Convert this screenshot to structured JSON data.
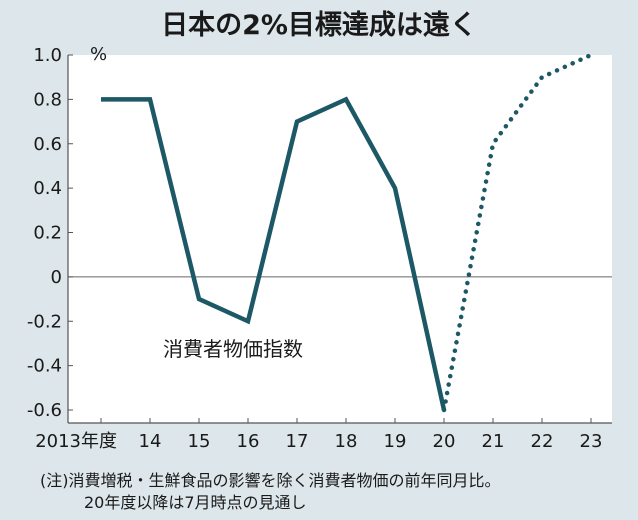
{
  "chart_data": {
    "type": "line",
    "title": "日本の2%目標達成は遠く",
    "y_unit": "%",
    "ylim": [
      -0.6,
      1.0
    ],
    "y_ticks": [
      1.0,
      0.8,
      0.6,
      0.4,
      0.2,
      0,
      -0.2,
      -0.4,
      -0.6
    ],
    "y_tick_labels": [
      "1.0",
      "0.8",
      "0.6",
      "0.4",
      "0.2",
      "0",
      "-0.2",
      "-0.4",
      "-0.6"
    ],
    "categories": [
      "2013年度",
      "14",
      "15",
      "16",
      "17",
      "18",
      "19",
      "20",
      "21",
      "22",
      "23"
    ],
    "series": [
      {
        "name": "消費者物価指数",
        "color": "#1d5866",
        "actual_values": [
          0.8,
          0.8,
          -0.1,
          -0.2,
          0.7,
          0.8,
          0.4,
          -0.6
        ],
        "forecast_values": [
          -0.6,
          0.6,
          0.9,
          1.0
        ],
        "forecast_style": "dotted"
      }
    ],
    "zero_line": true,
    "grid": false
  },
  "notes": [
    "(注)消費増税・生鮮食品の影響を除く消費者物価の前年同月比。",
    "20年度以降は7月時点の見通し"
  ],
  "colors": {
    "background": "#dde6ea",
    "plot_background": "#ffffff",
    "line": "#1d5866",
    "axis": "#555555"
  }
}
